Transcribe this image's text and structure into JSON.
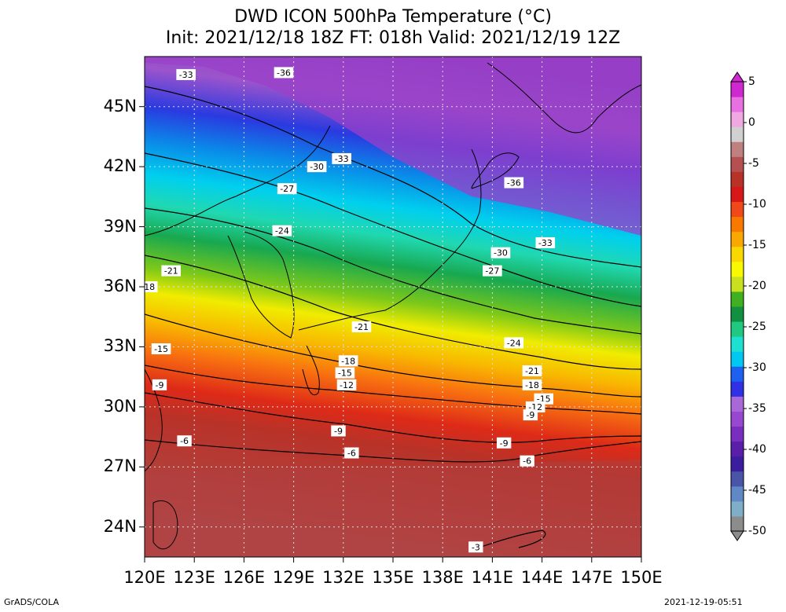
{
  "title": {
    "line1": "DWD ICON 500hPa Temperature (°C)",
    "line2": "Init: 2021/12/18 18Z  FT: 018h  Valid: 2021/12/19 12Z"
  },
  "axes": {
    "lat_labels": [
      "45N",
      "42N",
      "39N",
      "36N",
      "33N",
      "30N",
      "27N",
      "24N"
    ],
    "lat_values": [
      45,
      42,
      39,
      36,
      33,
      30,
      27,
      24
    ],
    "lon_labels": [
      "120E",
      "123E",
      "126E",
      "129E",
      "132E",
      "135E",
      "138E",
      "141E",
      "144E",
      "147E",
      "150E"
    ],
    "lon_values": [
      120,
      123,
      126,
      129,
      132,
      135,
      138,
      141,
      144,
      147,
      150
    ],
    "lat_range": [
      22.5,
      47.5
    ],
    "lon_range": [
      120,
      150
    ]
  },
  "colorbar": {
    "labels": [
      "5",
      "0",
      "-5",
      "-10",
      "-15",
      "-20",
      "-25",
      "-30",
      "-35",
      "-40",
      "-45",
      "-50"
    ],
    "values": [
      5,
      0,
      -5,
      -10,
      -15,
      -20,
      -25,
      -30,
      -35,
      -40,
      -45,
      -50
    ],
    "range": [
      -50,
      5
    ],
    "colors": [
      "#8c8c8c",
      "#7faec8",
      "#5f88c4",
      "#4a55a8",
      "#3b1ea0",
      "#5a1ea8",
      "#7a2ec0",
      "#9848d0",
      "#a868d8",
      "#3030e6",
      "#1e60f0",
      "#00c8f0",
      "#1ee0d0",
      "#20c880",
      "#109040",
      "#40b020",
      "#c8e01e",
      "#f8f800",
      "#f8d800",
      "#f8a800",
      "#f87800",
      "#f04818",
      "#d81818",
      "#b83228",
      "#b45050",
      "#c08080",
      "#d0d0d0",
      "#f0a8e0",
      "#e870e0",
      "#d028d0"
    ]
  },
  "contours": [
    {
      "label": "-33",
      "lon": 122.5,
      "lat": 46.6
    },
    {
      "label": "-36",
      "lon": 128.4,
      "lat": 46.7
    },
    {
      "label": "-30",
      "lon": 130.4,
      "lat": 42.0
    },
    {
      "label": "-33",
      "lon": 131.9,
      "lat": 42.4
    },
    {
      "label": "-27",
      "lon": 128.6,
      "lat": 40.9
    },
    {
      "label": "-36",
      "lon": 142.3,
      "lat": 41.2
    },
    {
      "label": "-24",
      "lon": 128.3,
      "lat": 38.8
    },
    {
      "label": "-33",
      "lon": 144.2,
      "lat": 38.2
    },
    {
      "label": "-30",
      "lon": 141.5,
      "lat": 37.7
    },
    {
      "label": "-21",
      "lon": 121.6,
      "lat": 36.8
    },
    {
      "label": "-27",
      "lon": 141.0,
      "lat": 36.8
    },
    {
      "label": "-18",
      "lon": 120.2,
      "lat": 36.0
    },
    {
      "label": "-21",
      "lon": 133.1,
      "lat": 34.0
    },
    {
      "label": "-24",
      "lon": 142.3,
      "lat": 33.2
    },
    {
      "label": "-15",
      "lon": 121.0,
      "lat": 32.9
    },
    {
      "label": "-18",
      "lon": 132.3,
      "lat": 32.3
    },
    {
      "label": "-21",
      "lon": 143.4,
      "lat": 31.8
    },
    {
      "label": "-15",
      "lon": 132.1,
      "lat": 31.7
    },
    {
      "label": "-18",
      "lon": 143.4,
      "lat": 31.1
    },
    {
      "label": "-9",
      "lon": 120.9,
      "lat": 31.1
    },
    {
      "label": "-12",
      "lon": 132.2,
      "lat": 31.1
    },
    {
      "label": "-15",
      "lon": 144.1,
      "lat": 30.4
    },
    {
      "label": "-12",
      "lon": 143.6,
      "lat": 30.0
    },
    {
      "label": "-9",
      "lon": 143.3,
      "lat": 29.6
    },
    {
      "label": "-9",
      "lon": 131.7,
      "lat": 28.8
    },
    {
      "label": "-6",
      "lon": 122.4,
      "lat": 28.3
    },
    {
      "label": "-9",
      "lon": 141.7,
      "lat": 28.2
    },
    {
      "label": "-6",
      "lon": 132.5,
      "lat": 27.7
    },
    {
      "label": "-6",
      "lon": 143.1,
      "lat": 27.3
    },
    {
      "label": "-3",
      "lon": 140.0,
      "lat": 23.0
    }
  ],
  "footer": {
    "left": "GrADS/COLA",
    "right": "2021-12-19-05:51"
  }
}
